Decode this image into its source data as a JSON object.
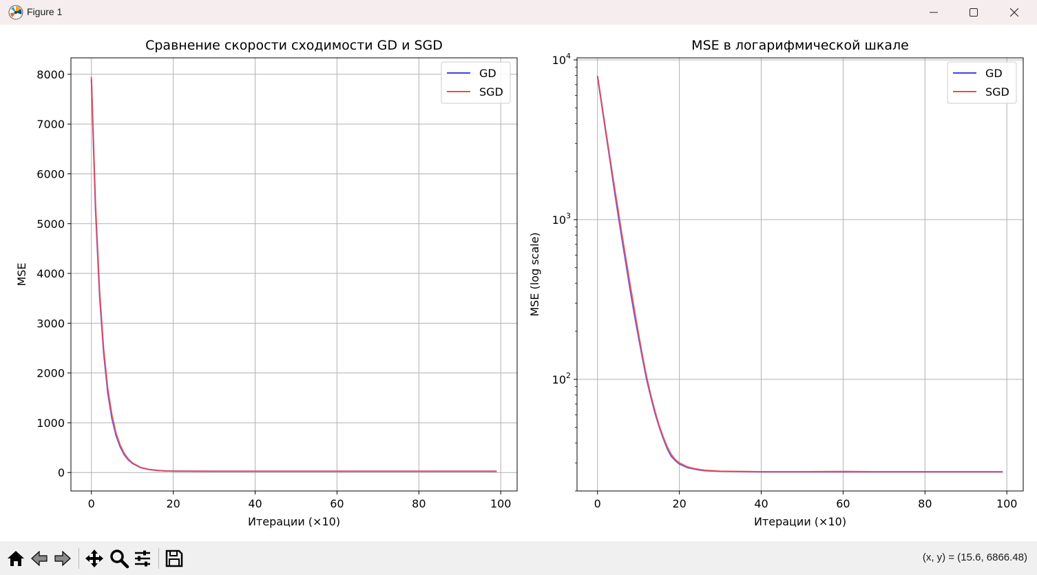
{
  "window": {
    "title": "Figure 1",
    "icons": [
      "matplotlib-logo-icon",
      "minimize-icon",
      "maximize-icon",
      "close-icon"
    ]
  },
  "chart_data": [
    {
      "type": "line",
      "title": "Сравнение скорости сходимости GD и SGD",
      "xlabel": "Итерации (×10)",
      "ylabel": "MSE",
      "xlim": [
        -5,
        104
      ],
      "ylim": [
        -370,
        8330
      ],
      "yscale": "linear",
      "xticks": [
        0,
        20,
        40,
        60,
        80,
        100
      ],
      "yticks": [
        0,
        1000,
        2000,
        3000,
        4000,
        5000,
        6000,
        7000,
        8000
      ],
      "xtick_labels": [
        "0",
        "20",
        "40",
        "60",
        "80",
        "100"
      ],
      "ytick_labels": [
        "0",
        "1000",
        "2000",
        "3000",
        "4000",
        "5000",
        "6000",
        "7000",
        "8000"
      ],
      "grid": true,
      "legend": "top-right",
      "series": [
        {
          "name": "GD",
          "color": "#4040e6",
          "x": [
            0,
            1,
            2,
            3,
            4,
            5,
            6,
            7,
            8,
            9,
            10,
            12,
            14,
            16,
            18,
            20,
            25,
            30,
            40,
            50,
            60,
            70,
            80,
            90,
            99
          ],
          "y": [
            7900,
            5300,
            3550,
            2400,
            1600,
            1090,
            750,
            520,
            360,
            255,
            185,
            100,
            62,
            43,
            33,
            29,
            27,
            26,
            26,
            26,
            26,
            26,
            26,
            26,
            26
          ]
        },
        {
          "name": "SGD",
          "color": "#f04848",
          "x": [
            0,
            1,
            2,
            3,
            4,
            5,
            6,
            7,
            8,
            9,
            10,
            12,
            14,
            16,
            18,
            20,
            25,
            30,
            40,
            50,
            60,
            70,
            80,
            90,
            99
          ],
          "y": [
            7950,
            5400,
            3650,
            2480,
            1690,
            1170,
            800,
            560,
            390,
            275,
            195,
            105,
            64,
            44,
            34,
            30,
            27,
            26,
            26,
            26,
            26,
            26,
            26,
            26,
            26
          ]
        }
      ]
    },
    {
      "type": "line",
      "title": "MSE в логарифмической шкале",
      "xlabel": "Итерации (×10)",
      "ylabel": "MSE (log scale)",
      "xlim": [
        -5,
        104
      ],
      "ylim": [
        20,
        10300
      ],
      "yscale": "log",
      "xticks": [
        0,
        20,
        40,
        60,
        80,
        100
      ],
      "yticks": [
        100,
        1000,
        10000
      ],
      "xtick_labels": [
        "0",
        "20",
        "40",
        "60",
        "80",
        "100"
      ],
      "ytick_labels": [
        [
          "10",
          "2"
        ],
        [
          "10",
          "3"
        ],
        [
          "10",
          "4"
        ]
      ],
      "grid": true,
      "legend": "top-right",
      "series": [
        {
          "name": "GD",
          "color": "#4040e6",
          "x": [
            0,
            1,
            2,
            3,
            4,
            5,
            6,
            7,
            8,
            9,
            10,
            11,
            12,
            13,
            14,
            15,
            16,
            17,
            18,
            19,
            20,
            22,
            24,
            26,
            30,
            40,
            50,
            60,
            70,
            80,
            90,
            99
          ],
          "y": [
            7900,
            5300,
            3550,
            2400,
            1600,
            1090,
            750,
            520,
            360,
            255,
            185,
            135,
            100,
            78,
            62,
            51,
            43,
            37,
            33,
            31,
            29.5,
            28,
            27.3,
            26.8,
            26.5,
            26.3,
            26.3,
            26.3,
            26.3,
            26.3,
            26.3,
            26.3
          ]
        },
        {
          "name": "SGD",
          "color": "#f04848",
          "x": [
            0,
            1,
            2,
            3,
            4,
            5,
            6,
            7,
            8,
            9,
            10,
            11,
            12,
            13,
            14,
            15,
            16,
            17,
            18,
            19,
            20,
            22,
            24,
            26,
            30,
            40,
            50,
            60,
            70,
            80,
            90,
            99
          ],
          "y": [
            7950,
            5400,
            3650,
            2480,
            1690,
            1170,
            800,
            560,
            390,
            275,
            195,
            140,
            104,
            80,
            64,
            52,
            44,
            38,
            34,
            31.5,
            30,
            28.3,
            27.5,
            27,
            26.6,
            26.4,
            26.4,
            26.5,
            26.4,
            26.4,
            26.4,
            26.4
          ]
        }
      ]
    }
  ],
  "toolbar": {
    "icons": [
      "home-icon",
      "back-icon",
      "forward-icon",
      "pan-icon",
      "zoom-icon",
      "configure-subplots-icon",
      "save-icon"
    ],
    "coords_text": "(x, y) = (15.6, 6866.48)"
  }
}
